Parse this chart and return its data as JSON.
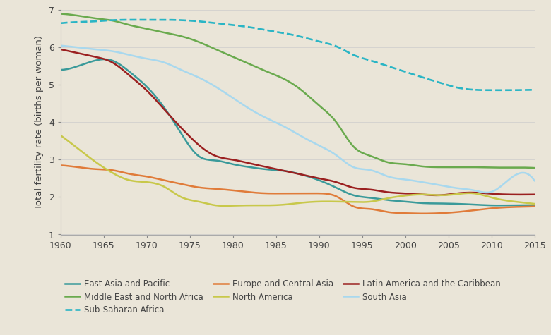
{
  "background_color": "#eae5d8",
  "ylabel": "Total fertility rate (births per woman)",
  "xlim": [
    1960,
    2015
  ],
  "ylim": [
    1,
    7
  ],
  "yticks": [
    1,
    2,
    3,
    4,
    5,
    6,
    7
  ],
  "xticks": [
    1960,
    1965,
    1970,
    1975,
    1980,
    1985,
    1990,
    1995,
    2000,
    2005,
    2010,
    2015
  ],
  "series": {
    "East Asia and Pacific": {
      "color": "#3a9a9a",
      "linestyle": "solid",
      "linewidth": 1.8,
      "x": [
        1960,
        1962,
        1964,
        1966,
        1968,
        1970,
        1972,
        1974,
        1976,
        1978,
        1980,
        1982,
        1984,
        1986,
        1988,
        1990,
        1992,
        1994,
        1996,
        1998,
        2000,
        2002,
        2004,
        2006,
        2008,
        2010,
        2012,
        2015
      ],
      "y": [
        5.4,
        5.5,
        5.65,
        5.65,
        5.35,
        4.95,
        4.4,
        3.7,
        3.1,
        2.98,
        2.88,
        2.8,
        2.74,
        2.7,
        2.6,
        2.45,
        2.25,
        2.05,
        1.98,
        1.92,
        1.88,
        1.84,
        1.83,
        1.82,
        1.8,
        1.78,
        1.78,
        1.78
      ]
    },
    "Europe and Central Asia": {
      "color": "#e07b39",
      "linestyle": "solid",
      "linewidth": 1.8,
      "x": [
        1960,
        1962,
        1964,
        1966,
        1968,
        1970,
        1972,
        1974,
        1976,
        1978,
        1980,
        1982,
        1984,
        1986,
        1988,
        1990,
        1992,
        1994,
        1996,
        1998,
        2000,
        2002,
        2004,
        2006,
        2008,
        2010,
        2012,
        2015
      ],
      "y": [
        2.85,
        2.8,
        2.75,
        2.72,
        2.62,
        2.55,
        2.45,
        2.35,
        2.26,
        2.22,
        2.18,
        2.13,
        2.1,
        2.1,
        2.1,
        2.1,
        2.02,
        1.75,
        1.68,
        1.6,
        1.57,
        1.56,
        1.57,
        1.6,
        1.65,
        1.7,
        1.73,
        1.75
      ]
    },
    "Latin America and the Caribbean": {
      "color": "#9b2020",
      "linestyle": "solid",
      "linewidth": 1.8,
      "x": [
        1960,
        1962,
        1964,
        1966,
        1968,
        1970,
        1972,
        1974,
        1976,
        1978,
        1980,
        1982,
        1984,
        1986,
        1988,
        1990,
        1992,
        1994,
        1996,
        1998,
        2000,
        2002,
        2004,
        2006,
        2008,
        2010,
        2012,
        2015
      ],
      "y": [
        5.95,
        5.85,
        5.75,
        5.6,
        5.25,
        4.85,
        4.35,
        3.85,
        3.4,
        3.1,
        3.0,
        2.9,
        2.8,
        2.7,
        2.6,
        2.5,
        2.4,
        2.25,
        2.2,
        2.13,
        2.1,
        2.07,
        2.05,
        2.1,
        2.12,
        2.09,
        2.07,
        2.07
      ]
    },
    "Middle East and North Africa": {
      "color": "#6aaa4e",
      "linestyle": "solid",
      "linewidth": 1.8,
      "x": [
        1960,
        1962,
        1964,
        1966,
        1968,
        1970,
        1972,
        1974,
        1976,
        1978,
        1980,
        1982,
        1984,
        1986,
        1988,
        1990,
        1992,
        1994,
        1996,
        1998,
        2000,
        2002,
        2004,
        2006,
        2008,
        2010,
        2012,
        2015
      ],
      "y": [
        6.9,
        6.85,
        6.78,
        6.72,
        6.6,
        6.5,
        6.4,
        6.3,
        6.15,
        5.95,
        5.75,
        5.55,
        5.35,
        5.15,
        4.85,
        4.45,
        4.0,
        3.35,
        3.1,
        2.93,
        2.88,
        2.82,
        2.8,
        2.8,
        2.8,
        2.79,
        2.79,
        2.78
      ]
    },
    "North America": {
      "color": "#c8c84a",
      "linestyle": "solid",
      "linewidth": 1.8,
      "x": [
        1960,
        1962,
        1964,
        1966,
        1968,
        1970,
        1972,
        1974,
        1976,
        1978,
        1980,
        1982,
        1984,
        1986,
        1988,
        1990,
        1992,
        1994,
        1996,
        1998,
        2000,
        2002,
        2004,
        2006,
        2008,
        2010,
        2012,
        2015
      ],
      "y": [
        3.65,
        3.3,
        2.95,
        2.65,
        2.45,
        2.4,
        2.28,
        2.0,
        1.88,
        1.78,
        1.77,
        1.78,
        1.78,
        1.8,
        1.85,
        1.88,
        1.88,
        1.87,
        1.88,
        1.97,
        2.04,
        2.07,
        2.05,
        2.08,
        2.1,
        1.99,
        1.9,
        1.82
      ]
    },
    "South Asia": {
      "color": "#a8d8ee",
      "linestyle": "solid",
      "linewidth": 1.8,
      "x": [
        1960,
        1962,
        1964,
        1966,
        1968,
        1970,
        1972,
        1974,
        1976,
        1978,
        1980,
        1982,
        1984,
        1986,
        1988,
        1990,
        1992,
        1994,
        1996,
        1998,
        2000,
        2002,
        2004,
        2006,
        2008,
        2010,
        2012,
        2015
      ],
      "y": [
        6.05,
        6.0,
        5.95,
        5.9,
        5.8,
        5.7,
        5.6,
        5.4,
        5.2,
        4.95,
        4.65,
        4.35,
        4.1,
        3.88,
        3.62,
        3.38,
        3.12,
        2.8,
        2.72,
        2.55,
        2.47,
        2.4,
        2.32,
        2.24,
        2.18,
        2.14,
        2.46,
        2.44
      ]
    },
    "Sub-Saharan Africa": {
      "color": "#2ab5c5",
      "linestyle": "dashed",
      "linewidth": 1.9,
      "x": [
        1960,
        1962,
        1964,
        1966,
        1968,
        1970,
        1972,
        1974,
        1976,
        1978,
        1980,
        1982,
        1984,
        1986,
        1988,
        1990,
        1992,
        1994,
        1996,
        1998,
        2000,
        2002,
        2004,
        2006,
        2008,
        2010,
        2012,
        2015
      ],
      "y": [
        6.65,
        6.68,
        6.7,
        6.73,
        6.74,
        6.74,
        6.74,
        6.73,
        6.7,
        6.65,
        6.6,
        6.54,
        6.46,
        6.38,
        6.28,
        6.16,
        6.03,
        5.8,
        5.65,
        5.5,
        5.35,
        5.2,
        5.06,
        4.93,
        4.87,
        4.86,
        4.86,
        4.87
      ]
    }
  },
  "legend_entries": [
    [
      "East Asia and Pacific",
      "Middle East and North Africa",
      "Sub-Saharan Africa"
    ],
    [
      "Europe and Central Asia",
      "North America",
      ""
    ],
    [
      "Latin America and the Caribbean",
      "South Asia",
      ""
    ]
  ],
  "legend_fontsize": 8.5,
  "tick_fontsize": 9,
  "ylabel_fontsize": 9.5
}
